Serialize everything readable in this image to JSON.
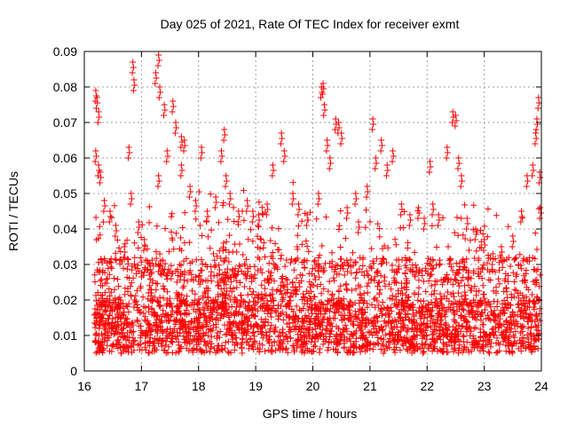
{
  "chart_data": {
    "type": "scatter",
    "title": "Day 025 of 2021, Rate Of TEC Index for receiver exmt",
    "xlabel": "GPS time / hours",
    "ylabel": "ROTI / TECUs",
    "xlim": [
      16,
      24
    ],
    "ylim": [
      0,
      0.09
    ],
    "grid": true,
    "marker": "+",
    "marker_color": "#ff0000",
    "x_ticks": [
      16,
      17,
      18,
      19,
      20,
      21,
      22,
      23,
      24
    ],
    "x_tick_labels": [
      "16",
      "17",
      "18",
      "19",
      "20",
      "21",
      "22",
      "23",
      "24"
    ],
    "y_ticks": [
      0,
      0.01,
      0.02,
      0.03,
      0.04,
      0.05,
      0.06,
      0.07,
      0.08,
      0.09
    ],
    "y_tick_labels": [
      "0",
      "0.01",
      "0.02",
      "0.03",
      "0.04",
      "0.05",
      "0.06",
      "0.07",
      "0.08",
      "0.09"
    ],
    "series": [
      {
        "name": "ROTI",
        "points": [
          [
            16.2,
            0.079
          ],
          [
            16.22,
            0.077
          ],
          [
            16.25,
            0.073
          ],
          [
            16.2,
            0.062
          ],
          [
            16.25,
            0.058
          ],
          [
            16.28,
            0.056
          ],
          [
            16.35,
            0.048
          ],
          [
            16.45,
            0.045
          ],
          [
            16.55,
            0.041
          ],
          [
            16.7,
            0.035
          ],
          [
            16.78,
            0.063
          ],
          [
            16.82,
            0.05
          ],
          [
            16.85,
            0.087
          ],
          [
            16.87,
            0.082
          ],
          [
            16.95,
            0.042
          ],
          [
            17.05,
            0.037
          ],
          [
            17.15,
            0.03
          ],
          [
            17.25,
            0.084
          ],
          [
            17.3,
            0.089
          ],
          [
            17.32,
            0.08
          ],
          [
            17.3,
            0.055
          ],
          [
            17.45,
            0.062
          ],
          [
            17.4,
            0.075
          ],
          [
            17.55,
            0.076
          ],
          [
            17.6,
            0.07
          ],
          [
            17.7,
            0.066
          ],
          [
            17.75,
            0.065
          ],
          [
            17.7,
            0.058
          ],
          [
            17.85,
            0.052
          ],
          [
            17.95,
            0.048
          ],
          [
            18.05,
            0.063
          ],
          [
            18.15,
            0.045
          ],
          [
            18.3,
            0.049
          ],
          [
            18.4,
            0.062
          ],
          [
            18.45,
            0.068
          ],
          [
            18.48,
            0.055
          ],
          [
            18.55,
            0.05
          ],
          [
            18.7,
            0.045
          ],
          [
            18.85,
            0.048
          ],
          [
            18.95,
            0.045
          ],
          [
            19.05,
            0.044
          ],
          [
            19.2,
            0.047
          ],
          [
            19.3,
            0.058
          ],
          [
            19.45,
            0.067
          ],
          [
            19.5,
            0.062
          ],
          [
            19.65,
            0.05
          ],
          [
            19.75,
            0.047
          ],
          [
            19.9,
            0.044
          ],
          [
            20.1,
            0.05
          ],
          [
            20.15,
            0.08
          ],
          [
            20.18,
            0.081
          ],
          [
            20.2,
            0.075
          ],
          [
            20.25,
            0.065
          ],
          [
            20.3,
            0.06
          ],
          [
            20.4,
            0.071
          ],
          [
            20.45,
            0.07
          ],
          [
            20.5,
            0.067
          ],
          [
            20.6,
            0.046
          ],
          [
            20.75,
            0.05
          ],
          [
            20.8,
            0.042
          ],
          [
            20.95,
            0.052
          ],
          [
            21.05,
            0.071
          ],
          [
            21.1,
            0.06
          ],
          [
            21.2,
            0.065
          ],
          [
            21.3,
            0.058
          ],
          [
            21.4,
            0.062
          ],
          [
            21.55,
            0.047
          ],
          [
            21.7,
            0.044
          ],
          [
            21.85,
            0.046
          ],
          [
            21.95,
            0.043
          ],
          [
            22.05,
            0.059
          ],
          [
            22.1,
            0.047
          ],
          [
            22.2,
            0.044
          ],
          [
            22.35,
            0.063
          ],
          [
            22.45,
            0.073
          ],
          [
            22.5,
            0.072
          ],
          [
            22.55,
            0.06
          ],
          [
            22.6,
            0.055
          ],
          [
            22.7,
            0.043
          ],
          [
            22.85,
            0.04
          ],
          [
            23.0,
            0.037
          ],
          [
            23.15,
            0.033
          ],
          [
            23.3,
            0.035
          ],
          [
            23.5,
            0.038
          ],
          [
            23.65,
            0.045
          ],
          [
            23.75,
            0.055
          ],
          [
            23.85,
            0.058
          ],
          [
            23.9,
            0.067
          ],
          [
            23.92,
            0.071
          ],
          [
            23.95,
            0.077
          ],
          [
            23.97,
            0.056
          ],
          [
            23.98,
            0.046
          ]
        ]
      }
    ],
    "dense_band": {
      "x_range": [
        16.18,
        23.98
      ],
      "y_core_range": [
        0.005,
        0.02
      ],
      "y_extended_range": [
        0.02,
        0.047
      ],
      "approx_points": 3200
    }
  }
}
